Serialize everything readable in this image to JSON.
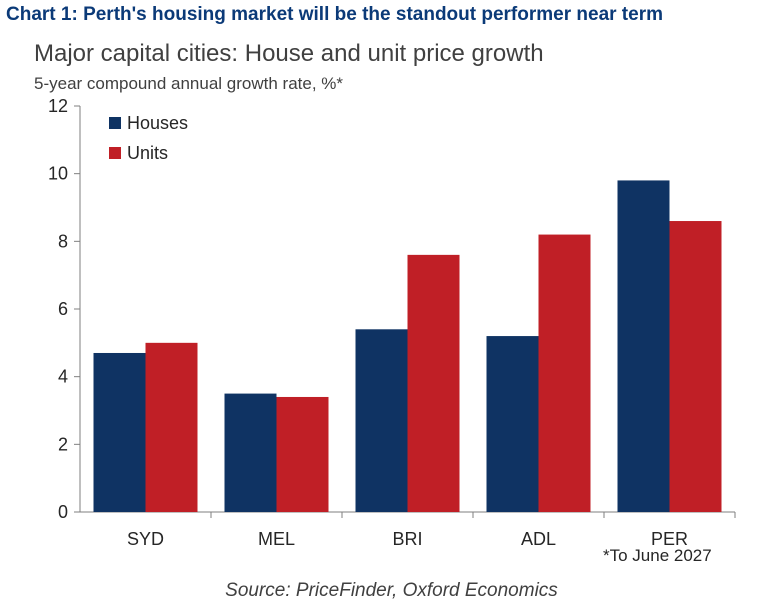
{
  "headline": "Chart 1: Perth's housing market will be the standout performer near term",
  "chart_data": {
    "type": "bar",
    "title": "Major capital cities: House and unit price growth",
    "ylabel": "5-year compound annual growth rate, %*",
    "xlabel": "",
    "categories": [
      "SYD",
      "MEL",
      "BRI",
      "ADL",
      "PER"
    ],
    "series": [
      {
        "name": "Houses",
        "color": "#0f3363",
        "values": [
          4.7,
          3.5,
          5.4,
          5.2,
          9.8
        ]
      },
      {
        "name": "Units",
        "color": "#c01f26",
        "values": [
          5.0,
          3.4,
          7.6,
          8.2,
          8.6
        ]
      }
    ],
    "ylim": [
      0,
      12
    ],
    "yticks": [
      0,
      2,
      4,
      6,
      8,
      10,
      12
    ],
    "grid": false,
    "legend_position": "top-left"
  },
  "footnote": "*To June 2027",
  "source": "Source: PriceFinder, Oxford Economics"
}
